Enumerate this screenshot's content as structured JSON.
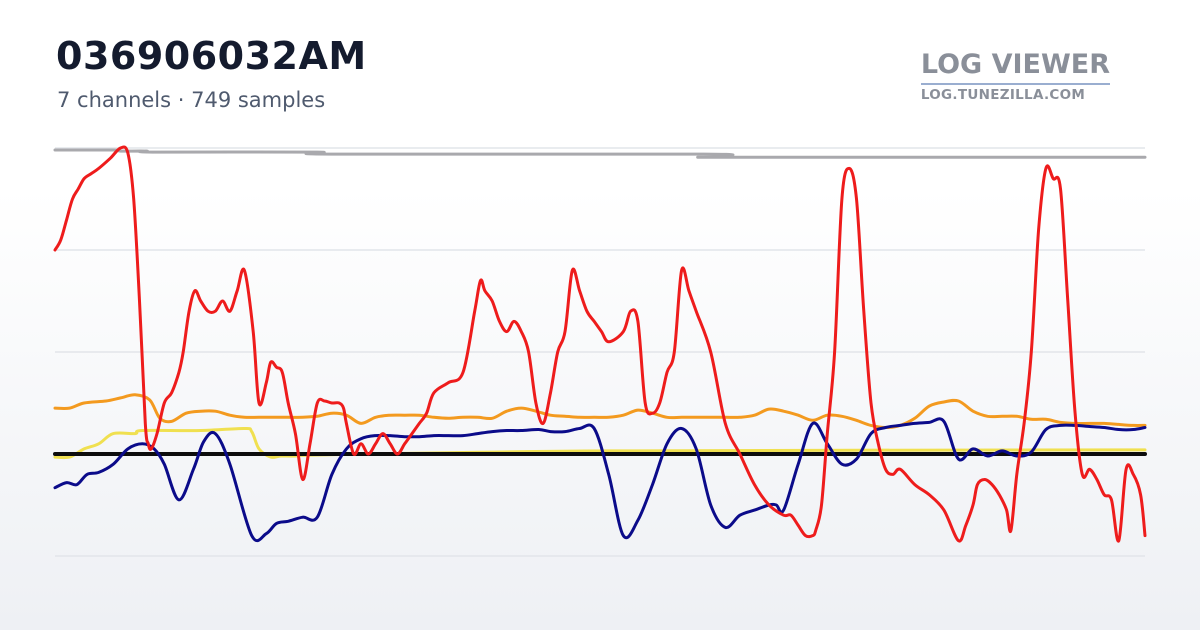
{
  "header": {
    "title": "036906032AM",
    "subtitle": "7 channels · 749 samples"
  },
  "brand": {
    "name": "LOG VIEWER",
    "url": "LOG.TUNEZILLA.COM"
  },
  "chart_data": {
    "type": "line",
    "title": "036906032AM",
    "subtitle": "7 channels · 749 samples",
    "xlabel": "",
    "ylabel": "",
    "xlim": [
      0,
      748
    ],
    "ylim": [
      -1,
      3
    ],
    "grid": true,
    "legend": "none",
    "series": [
      {
        "color": "#a9a9ad",
        "x": [
          0,
          40,
          45,
          63,
          67,
          180,
          190,
          445,
          450,
          455,
          465,
          748
        ],
        "values": [
          2.98,
          2.98,
          2.97,
          2.97,
          2.96,
          2.96,
          2.94,
          2.94,
          2.92,
          2.91,
          2.91,
          2.91
        ]
      },
      {
        "color": "#f0e050",
        "x": [
          0,
          10,
          20,
          30,
          40,
          55,
          60,
          100,
          130,
          135,
          140,
          148,
          155,
          165,
          180,
          380,
          748
        ],
        "values": [
          -0.03,
          -0.03,
          0.05,
          0.1,
          0.2,
          0.2,
          0.23,
          0.23,
          0.25,
          0.22,
          0.05,
          -0.03,
          -0.02,
          -0.02,
          -0.01,
          0.03,
          0.04
        ]
      },
      {
        "color": "#0d0d0d",
        "x": [
          0,
          748
        ],
        "values": [
          0.0,
          0.0
        ]
      },
      {
        "color": "#f39a1f",
        "x": [
          0,
          10,
          20,
          35,
          45,
          55,
          65,
          72,
          80,
          90,
          100,
          110,
          120,
          130,
          140,
          150,
          160,
          170,
          180,
          190,
          200,
          210,
          220,
          230,
          240,
          250,
          260,
          270,
          280,
          290,
          300,
          310,
          320,
          330,
          340,
          350,
          360,
          370,
          380,
          390,
          400,
          410,
          420,
          430,
          440,
          450,
          460,
          470,
          480,
          490,
          500,
          510,
          520,
          530,
          540,
          550,
          560,
          570,
          580,
          590,
          600,
          610,
          620,
          630,
          640,
          650,
          660,
          670,
          680,
          690,
          700,
          710,
          720,
          730,
          740,
          748
        ],
        "values": [
          0.45,
          0.45,
          0.5,
          0.52,
          0.55,
          0.58,
          0.53,
          0.35,
          0.32,
          0.4,
          0.42,
          0.42,
          0.38,
          0.36,
          0.36,
          0.36,
          0.36,
          0.36,
          0.37,
          0.4,
          0.38,
          0.3,
          0.36,
          0.38,
          0.38,
          0.38,
          0.36,
          0.35,
          0.36,
          0.36,
          0.35,
          0.42,
          0.45,
          0.42,
          0.38,
          0.37,
          0.36,
          0.36,
          0.36,
          0.38,
          0.43,
          0.4,
          0.36,
          0.36,
          0.36,
          0.36,
          0.36,
          0.36,
          0.38,
          0.44,
          0.42,
          0.38,
          0.33,
          0.38,
          0.37,
          0.33,
          0.28,
          0.26,
          0.28,
          0.35,
          0.47,
          0.51,
          0.52,
          0.42,
          0.37,
          0.37,
          0.37,
          0.34,
          0.34,
          0.31,
          0.3,
          0.3,
          0.3,
          0.29,
          0.28,
          0.28
        ]
      },
      {
        "color": "#0b0b8a",
        "x": [
          0,
          8,
          15,
          22,
          30,
          40,
          50,
          60,
          68,
          75,
          85,
          95,
          102,
          110,
          120,
          135,
          145,
          152,
          160,
          170,
          180,
          190,
          200,
          210,
          220,
          230,
          240,
          250,
          260,
          270,
          280,
          290,
          300,
          310,
          320,
          332,
          340,
          350,
          360,
          370,
          380,
          390,
          400,
          410,
          420,
          430,
          440,
          450,
          460,
          470,
          480,
          490,
          495,
          500,
          510,
          520,
          530,
          540,
          550,
          560,
          570,
          580,
          590,
          600,
          610,
          620,
          630,
          640,
          650,
          660,
          670,
          680,
          690,
          700,
          710,
          720,
          730,
          740,
          748
        ],
        "values": [
          -0.33,
          -0.28,
          -0.3,
          -0.2,
          -0.18,
          -0.1,
          0.05,
          0.1,
          0.05,
          -0.1,
          -0.45,
          -0.15,
          0.12,
          0.2,
          -0.1,
          -0.8,
          -0.78,
          -0.68,
          -0.66,
          -0.62,
          -0.62,
          -0.2,
          0.05,
          0.15,
          0.18,
          0.18,
          0.17,
          0.17,
          0.18,
          0.18,
          0.18,
          0.2,
          0.22,
          0.23,
          0.23,
          0.24,
          0.22,
          0.22,
          0.25,
          0.25,
          -0.2,
          -0.8,
          -0.65,
          -0.3,
          0.1,
          0.25,
          0.05,
          -0.5,
          -0.72,
          -0.6,
          -0.55,
          -0.5,
          -0.5,
          -0.55,
          -0.1,
          0.3,
          0.1,
          -0.1,
          -0.05,
          0.2,
          0.26,
          0.28,
          0.3,
          0.31,
          0.32,
          -0.05,
          0.05,
          -0.02,
          0.03,
          -0.02,
          0.02,
          0.24,
          0.28,
          0.28,
          0.27,
          0.26,
          0.24,
          0.24,
          0.26
        ]
      },
      {
        "color": "#ee1c1c",
        "x": [
          0,
          4,
          8,
          12,
          16,
          20,
          25,
          30,
          38,
          45,
          50,
          54,
          58,
          62,
          64,
          66,
          70,
          75,
          80,
          85,
          88,
          92,
          96,
          100,
          105,
          110,
          115,
          120,
          125,
          130,
          136,
          140,
          145,
          148,
          152,
          156,
          160,
          165,
          170,
          175,
          180,
          185,
          190,
          195,
          198,
          200,
          205,
          210,
          215,
          220,
          225,
          230,
          235,
          240,
          245,
          250,
          255,
          260,
          270,
          280,
          288,
          292,
          295,
          300,
          305,
          310,
          315,
          320,
          325,
          330,
          335,
          340,
          345,
          350,
          355,
          360,
          365,
          370,
          375,
          380,
          390,
          395,
          400,
          405,
          410,
          415,
          420,
          425,
          430,
          435,
          440,
          450,
          460,
          470,
          480,
          490,
          500,
          505,
          510,
          515,
          520,
          522,
          526,
          530,
          535,
          540,
          545,
          550,
          555,
          560,
          565,
          570,
          575,
          580,
          590,
          600,
          610,
          620,
          625,
          630,
          633,
          638,
          643,
          648,
          653,
          656,
          660,
          665,
          670,
          675,
          680,
          685,
          690,
          695,
          700,
          705,
          710,
          715,
          720,
          725,
          730,
          735,
          740,
          745,
          748
        ],
        "values": [
          2.0,
          2.1,
          2.3,
          2.5,
          2.6,
          2.7,
          2.75,
          2.8,
          2.9,
          3.0,
          2.95,
          2.5,
          1.5,
          0.3,
          0.1,
          0.05,
          0.2,
          0.5,
          0.6,
          0.8,
          1.0,
          1.4,
          1.6,
          1.5,
          1.4,
          1.4,
          1.5,
          1.4,
          1.6,
          1.8,
          1.2,
          0.5,
          0.7,
          0.9,
          0.85,
          0.8,
          0.5,
          0.2,
          -0.25,
          0.1,
          0.5,
          0.52,
          0.5,
          0.5,
          0.45,
          0.3,
          0.0,
          0.1,
          0.0,
          0.1,
          0.2,
          0.1,
          0.0,
          0.1,
          0.2,
          0.3,
          0.4,
          0.6,
          0.7,
          0.8,
          1.4,
          1.7,
          1.6,
          1.5,
          1.3,
          1.2,
          1.3,
          1.2,
          1.0,
          0.5,
          0.3,
          0.6,
          1.0,
          1.2,
          1.8,
          1.6,
          1.4,
          1.3,
          1.2,
          1.1,
          1.2,
          1.4,
          1.3,
          0.5,
          0.4,
          0.5,
          0.8,
          1.0,
          1.8,
          1.6,
          1.4,
          1.0,
          0.3,
          0.0,
          -0.3,
          -0.5,
          -0.6,
          -0.6,
          -0.7,
          -0.8,
          -0.8,
          -0.75,
          -0.5,
          0.2,
          1.0,
          2.5,
          2.8,
          2.5,
          1.4,
          0.5,
          0.1,
          -0.15,
          -0.2,
          -0.15,
          -0.3,
          -0.4,
          -0.55,
          -0.85,
          -0.7,
          -0.5,
          -0.3,
          -0.25,
          -0.3,
          -0.4,
          -0.55,
          -0.75,
          -0.2,
          0.3,
          1.0,
          2.2,
          2.8,
          2.7,
          2.6,
          1.5,
          0.4,
          -0.2,
          -0.15,
          -0.25,
          -0.4,
          -0.45,
          -0.85,
          -0.15,
          -0.2,
          -0.4,
          -0.8
        ]
      }
    ]
  }
}
